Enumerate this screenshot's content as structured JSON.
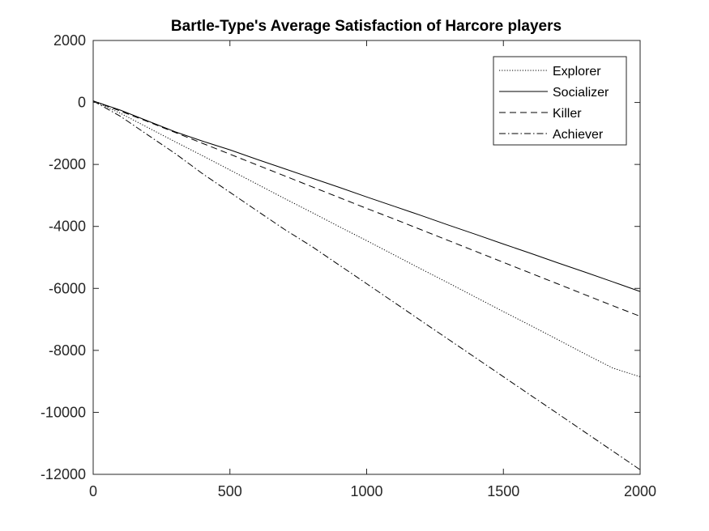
{
  "chart_data": {
    "type": "line",
    "title": "Bartle-Type's Average Satisfaction of Harcore players",
    "xlabel": "",
    "ylabel": "",
    "xlim": [
      0,
      2000
    ],
    "ylim": [
      -12000,
      2000
    ],
    "x_ticks": [
      0,
      500,
      1000,
      1500,
      2000
    ],
    "y_ticks": [
      2000,
      0,
      -2000,
      -4000,
      -6000,
      -8000,
      -10000,
      -12000
    ],
    "grid": false,
    "legend_position": "top-right",
    "x": [
      0,
      100,
      200,
      300,
      400,
      500,
      600,
      700,
      800,
      900,
      1000,
      1100,
      1200,
      1300,
      1400,
      1500,
      1600,
      1700,
      1800,
      1900,
      2000
    ],
    "series": [
      {
        "name": "Explorer",
        "style": "dotted",
        "color": "#000000",
        "values": [
          50,
          -350,
          -810,
          -1270,
          -1720,
          -2180,
          -2640,
          -3100,
          -3550,
          -4010,
          -4460,
          -4920,
          -5380,
          -5830,
          -6290,
          -6750,
          -7200,
          -7660,
          -8120,
          -8570,
          -8850
        ]
      },
      {
        "name": "Socializer",
        "style": "solid",
        "color": "#000000",
        "values": [
          50,
          -250,
          -600,
          -950,
          -1250,
          -1530,
          -1840,
          -2140,
          -2440,
          -2740,
          -3050,
          -3350,
          -3650,
          -3960,
          -4260,
          -4570,
          -4870,
          -5180,
          -5480,
          -5790,
          -6100
        ]
      },
      {
        "name": "Killer",
        "style": "dashed",
        "color": "#000000",
        "values": [
          50,
          -280,
          -620,
          -970,
          -1320,
          -1670,
          -2020,
          -2370,
          -2720,
          -3070,
          -3420,
          -3760,
          -4110,
          -4460,
          -4810,
          -5160,
          -5510,
          -5860,
          -6210,
          -6560,
          -6900
        ]
      },
      {
        "name": "Achiever",
        "style": "dashdot",
        "color": "#000000",
        "values": [
          50,
          -450,
          -1050,
          -1650,
          -2300,
          -2900,
          -3500,
          -4100,
          -4650,
          -5250,
          -5850,
          -6450,
          -7050,
          -7650,
          -8250,
          -8850,
          -9450,
          -10050,
          -10650,
          -11250,
          -11850
        ]
      }
    ]
  }
}
